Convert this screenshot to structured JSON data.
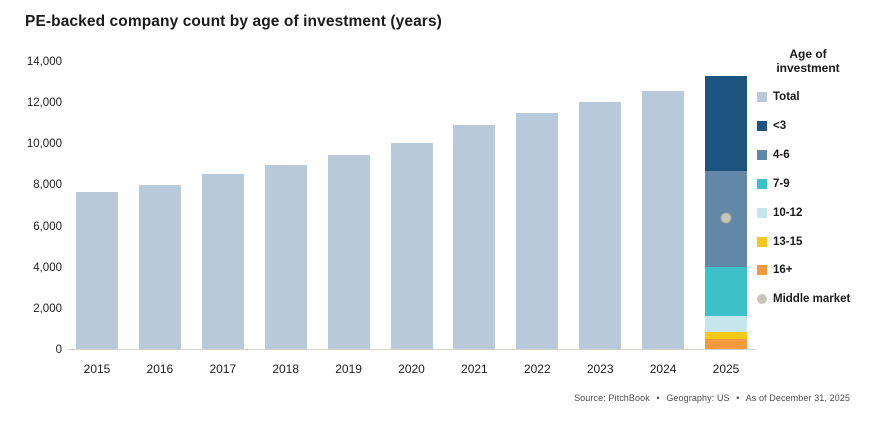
{
  "title": "PE-backed company count by age of investment (years)",
  "footer": {
    "parts": [
      "Source: PitchBook",
      "Geography: US",
      "As of December 31, 2025"
    ],
    "bullet": "•"
  },
  "legend": {
    "heading": "Age of investment",
    "items": [
      {
        "label": "Total",
        "color": "#b8cada",
        "shape": "square"
      },
      {
        "label": "<3",
        "color": "#1d537f",
        "shape": "square"
      },
      {
        "label": "4-6",
        "color": "#6287a8",
        "shape": "square"
      },
      {
        "label": "7-9",
        "color": "#3ec0c9",
        "shape": "square"
      },
      {
        "label": "10-12",
        "color": "#c5e6ea",
        "shape": "square"
      },
      {
        "label": "13-15",
        "color": "#f3c913",
        "shape": "square"
      },
      {
        "label": "16+",
        "color": "#f3993e",
        "shape": "square"
      },
      {
        "label": "Middle market",
        "color": "#c9c5b8",
        "shape": "circle"
      }
    ]
  },
  "chart_data": {
    "type": "bar",
    "title": "PE-backed company count by age of investment (years)",
    "categories": [
      "2015",
      "2016",
      "2017",
      "2018",
      "2019",
      "2020",
      "2021",
      "2022",
      "2023",
      "2024",
      "2025"
    ],
    "ylim": [
      0,
      14000
    ],
    "yticks": [
      {
        "value": 0,
        "label": "0"
      },
      {
        "value": 2000,
        "label": "2,000"
      },
      {
        "value": 4000,
        "label": "4,000"
      },
      {
        "value": 6000,
        "label": "6,000"
      },
      {
        "value": 8000,
        "label": "8,000"
      },
      {
        "value": 10000,
        "label": "10,000"
      },
      {
        "value": 12000,
        "label": "12,000"
      },
      {
        "value": 14000,
        "label": "14,000"
      }
    ],
    "grid": false,
    "legend_position": "right",
    "total_series": {
      "name": "Total",
      "color": "#b8cada",
      "values": [
        7700,
        8000,
        8550,
        9000,
        9500,
        10050,
        10950,
        11500,
        12050,
        12600,
        13300
      ]
    },
    "stacked_final_year": {
      "category": "2025",
      "segments_bottom_to_top": [
        {
          "name": "16+",
          "value": 530,
          "color": "#f3993e"
        },
        {
          "name": "13-15",
          "value": 340,
          "color": "#f3c913"
        },
        {
          "name": "10-12",
          "value": 780,
          "color": "#c5e6ea"
        },
        {
          "name": "7-9",
          "value": 2400,
          "color": "#3ec0c9"
        },
        {
          "name": "4-6",
          "value": 4650,
          "color": "#6287a8"
        },
        {
          "name": "<3",
          "value": 4600,
          "color": "#1d537f"
        }
      ]
    },
    "middle_market_marker": {
      "name": "Middle market",
      "category": "2025",
      "value": 6400,
      "color": "#c9c5b8"
    },
    "axis_line_color": "#d7d3c5"
  }
}
